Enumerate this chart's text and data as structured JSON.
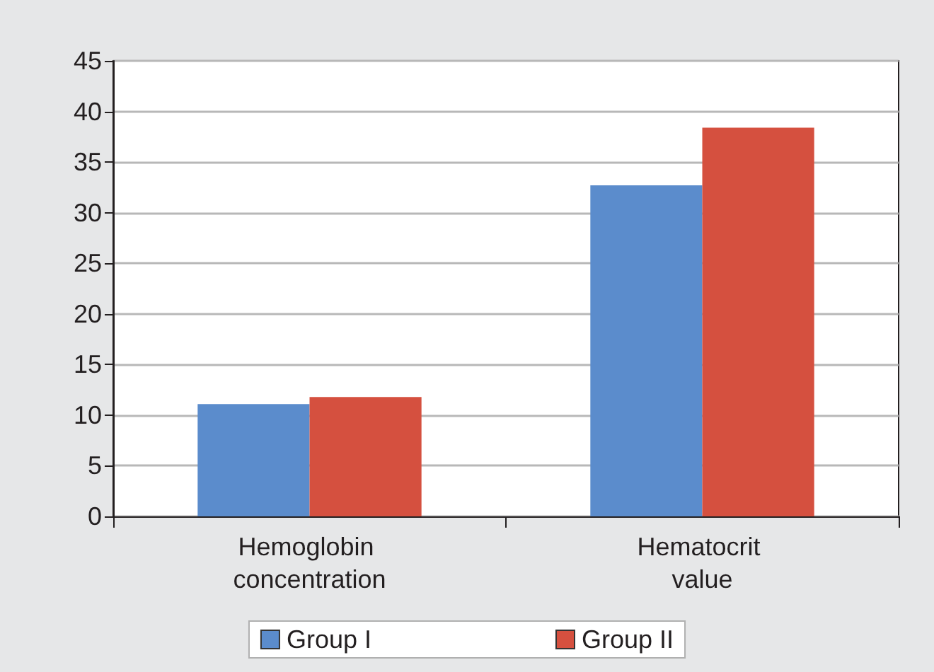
{
  "chart_data": {
    "type": "bar",
    "categories": [
      "Hemoglobin concentration",
      "Hematocrit value"
    ],
    "series": [
      {
        "name": "Group I",
        "color": "#5b8ccc",
        "values": [
          11.1,
          32.7
        ]
      },
      {
        "name": "Group II",
        "color": "#d5503f",
        "values": [
          11.8,
          38.4
        ]
      }
    ],
    "ylim": [
      0,
      45
    ],
    "yticks": [
      0,
      5,
      10,
      15,
      20,
      25,
      30,
      35,
      40,
      45
    ],
    "grid": "y",
    "legend": "bottom"
  }
}
